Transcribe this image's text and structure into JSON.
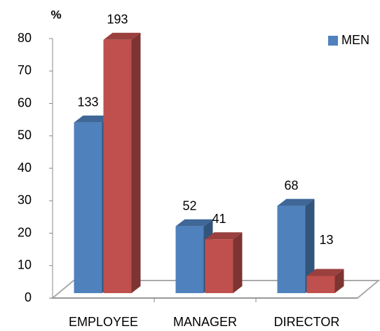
{
  "chart_data": {
    "type": "bar3d",
    "title": "%",
    "categories": [
      "EMPLOYEE",
      "MANAGER",
      "DIRECTOR"
    ],
    "series": [
      {
        "name": "MEN",
        "color": "#4f81bd",
        "values": [
          52.6,
          20.6,
          26.9
        ],
        "counts": [
          133,
          52,
          68
        ]
      },
      {
        "color": "#c0504d",
        "values": [
          78.1,
          16.6,
          5.3
        ],
        "counts": [
          193,
          41,
          13
        ]
      }
    ],
    "ylim": [
      0,
      80
    ],
    "yticks": [
      0,
      10,
      20,
      30,
      40,
      50,
      60,
      70,
      80
    ],
    "legend": "top-right"
  }
}
